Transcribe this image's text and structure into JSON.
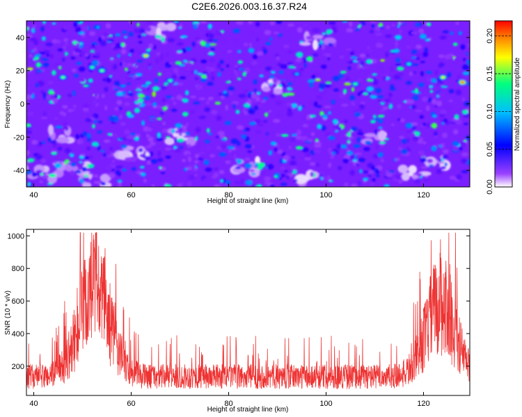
{
  "title": "C2E6.2026.003.16.37.R24",
  "chart_data": [
    {
      "type": "heatmap",
      "xlabel": "Height of straight line (km)",
      "ylabel": "Frequency (Hz)",
      "xlim": [
        38.5,
        129.5
      ],
      "ylim": [
        -50,
        50
      ],
      "xticks": [
        40,
        60,
        80,
        100,
        120
      ],
      "yticks": [
        -40,
        -20,
        0,
        20,
        40
      ],
      "colorbar": {
        "label": "Normalized spectral amplitude",
        "range": [
          0,
          0.22
        ],
        "ticks": [
          "0.00",
          "0.05",
          "0.10",
          "0.15",
          "0.20"
        ],
        "colormap": [
          "#ffffff",
          "#8000ff",
          "#0000ff",
          "#00c0ff",
          "#00ff80",
          "#ffff00",
          "#ff0000"
        ]
      },
      "hotspots": [
        {
          "x": 46,
          "y": 16,
          "v": 0.16
        },
        {
          "x": 54,
          "y": 20,
          "v": 0.16
        },
        {
          "x": 63,
          "y": 29,
          "v": 0.19
        },
        {
          "x": 68,
          "y": 14,
          "v": 0.15
        },
        {
          "x": 106,
          "y": 12,
          "v": 0.15
        },
        {
          "x": 117,
          "y": 24,
          "v": 0.14
        },
        {
          "x": 124,
          "y": 16,
          "v": 0.18
        },
        {
          "x": 128,
          "y": 13,
          "v": 0.21
        },
        {
          "x": 52,
          "y": 22,
          "v": 0.15
        },
        {
          "x": 94,
          "y": 18,
          "v": 0.12
        }
      ]
    },
    {
      "type": "line",
      "xlabel": "Height of straight line (km)",
      "ylabel": "SNR (10 * v/v)",
      "xlim": [
        38.5,
        129.5
      ],
      "ylim": [
        20,
        1040
      ],
      "xticks": [
        40,
        60,
        80,
        100,
        120
      ],
      "yticks": [
        200,
        400,
        600,
        800,
        1000
      ],
      "color": "#ee3333",
      "baseline": 170,
      "peaks": [
        {
          "center_x": 52.5,
          "height": 650,
          "width": 3.2
        },
        {
          "center_x": 123.5,
          "height": 560,
          "width": 3.0
        }
      ],
      "max_value": 1020,
      "min_value": 40
    }
  ]
}
